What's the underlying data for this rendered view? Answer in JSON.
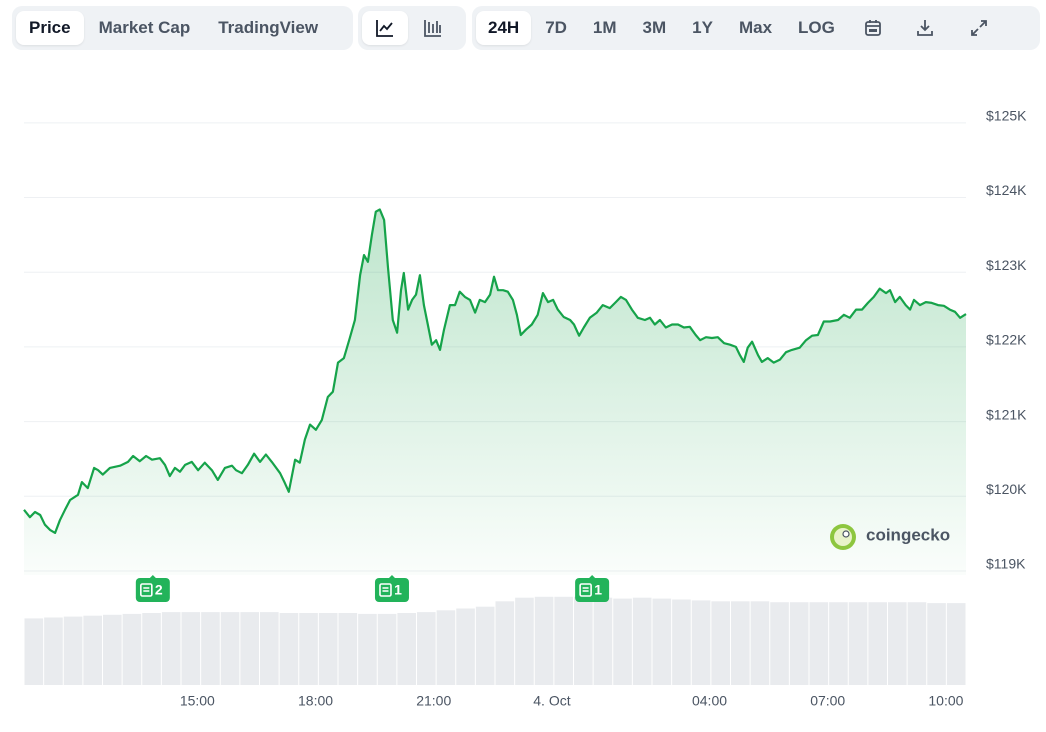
{
  "toolbar": {
    "tabs": [
      "Price",
      "Market Cap",
      "TradingView"
    ],
    "selected_tab": 0,
    "ranges": [
      "24H",
      "7D",
      "1M",
      "3M",
      "1Y",
      "Max",
      "LOG"
    ],
    "selected_range": 0
  },
  "watermark": "coingecko",
  "chart_data": {
    "type": "line",
    "x": [
      -13.4,
      -13.25,
      -13.12,
      -12.99,
      -12.87,
      -12.74,
      -12.61,
      -12.49,
      -12.36,
      -12.23,
      -12.03,
      -11.93,
      -11.78,
      -11.62,
      -11.52,
      -11.4,
      -11.22,
      -10.96,
      -10.76,
      -10.63,
      -10.46,
      -10.3,
      -10.15,
      -9.95,
      -9.82,
      -9.7,
      -9.57,
      -9.44,
      -9.31,
      -9.14,
      -8.98,
      -8.81,
      -8.63,
      -8.48,
      -8.3,
      -8.12,
      -8.02,
      -7.87,
      -7.72,
      -7.56,
      -7.41,
      -7.26,
      -7.11,
      -6.9,
      -6.78,
      -6.68,
      -6.52,
      -6.4,
      -6.27,
      -6.14,
      -5.99,
      -5.84,
      -5.69,
      -5.56,
      -5.43,
      -5.28,
      -5.13,
      -5,
      -4.87,
      -4.77,
      -4.67,
      -4.57,
      -4.47,
      -4.37,
      -4.26,
      -4.16,
      -4.04,
      -3.93,
      -3.83,
      -3.76,
      -3.65,
      -3.55,
      -3.45,
      -3.35,
      -3.25,
      -3.15,
      -3.05,
      -2.94,
      -2.84,
      -2.74,
      -2.59,
      -2.46,
      -2.34,
      -2.21,
      -2.08,
      -1.95,
      -1.83,
      -1.7,
      -1.57,
      -1.47,
      -1.37,
      -1.24,
      -1.12,
      -0.99,
      -0.89,
      -0.79,
      -0.66,
      -0.51,
      -0.36,
      -0.23,
      -0.1,
      0.03,
      0.15,
      0.3,
      0.46,
      0.56,
      0.69,
      0.81,
      0.96,
      1.14,
      1.29,
      1.47,
      1.62,
      1.75,
      1.88,
      2.03,
      2.18,
      2.36,
      2.49,
      2.61,
      2.74,
      2.89,
      3.05,
      3.2,
      3.35,
      3.5,
      3.65,
      3.76,
      3.91,
      4.06,
      4.21,
      4.37,
      4.52,
      4.67,
      4.77,
      4.87,
      4.97,
      5.08,
      5.23,
      5.33,
      5.48,
      5.63,
      5.79,
      5.94,
      6.09,
      6.29,
      6.45,
      6.6,
      6.75,
      6.9,
      7.06,
      7.26,
      7.41,
      7.56,
      7.72,
      7.87,
      8.02,
      8.17,
      8.32,
      8.48,
      8.58,
      8.71,
      8.83,
      8.98,
      9.09,
      9.19,
      9.34,
      9.49,
      9.64,
      9.8,
      9.95,
      10.1,
      10.23,
      10.36,
      10.51
    ],
    "series": [
      {
        "color": "#16a34a",
        "values": [
          119820,
          119720,
          119790,
          119750,
          119620,
          119550,
          119510,
          119680,
          119820,
          119950,
          120020,
          120190,
          120110,
          120380,
          120350,
          120290,
          120380,
          120410,
          120460,
          120540,
          120470,
          120540,
          120490,
          120510,
          120420,
          120270,
          120380,
          120330,
          120420,
          120460,
          120350,
          120450,
          120350,
          120220,
          120380,
          120410,
          120350,
          120310,
          120420,
          120570,
          120460,
          120560,
          120460,
          120310,
          120180,
          120060,
          120490,
          120450,
          120760,
          120960,
          120890,
          121020,
          121330,
          121400,
          121790,
          121850,
          122120,
          122360,
          122960,
          123230,
          123140,
          123500,
          123810,
          123840,
          123700,
          123060,
          122360,
          122190,
          122760,
          122990,
          122500,
          122630,
          122700,
          122960,
          122560,
          122300,
          122030,
          122090,
          121960,
          122230,
          122560,
          122560,
          122740,
          122670,
          122630,
          122460,
          122630,
          122600,
          122700,
          122940,
          122760,
          122760,
          122740,
          122630,
          122430,
          122160,
          122230,
          122300,
          122430,
          122720,
          122600,
          122630,
          122500,
          122400,
          122360,
          122300,
          122150,
          122260,
          122390,
          122460,
          122560,
          122520,
          122600,
          122670,
          122630,
          122500,
          122390,
          122360,
          122390,
          122300,
          122360,
          122260,
          122300,
          122300,
          122260,
          122270,
          122160,
          122090,
          122130,
          122120,
          122130,
          122050,
          122030,
          122000,
          121890,
          121800,
          121990,
          122070,
          121890,
          121800,
          121850,
          121790,
          121830,
          121930,
          121960,
          121990,
          122090,
          122150,
          122160,
          122340,
          122340,
          122360,
          122430,
          122390,
          122500,
          122500,
          122590,
          122670,
          122780,
          122720,
          122760,
          122600,
          122670,
          122560,
          122500,
          122630,
          122560,
          122600,
          122590,
          122560,
          122550,
          122500,
          122470,
          122390,
          122440
        ]
      }
    ],
    "xlim": [
      -13.4,
      10.51
    ],
    "xticks": [
      {
        "value": -9,
        "label": "15:00"
      },
      {
        "value": -6,
        "label": "18:00"
      },
      {
        "value": -3,
        "label": "21:00"
      },
      {
        "value": 0,
        "label": "4. Oct"
      },
      {
        "value": 4,
        "label": "04:00"
      },
      {
        "value": 7,
        "label": "07:00"
      },
      {
        "value": 10,
        "label": "10:00"
      }
    ],
    "ylim": [
      119000,
      125500
    ],
    "yticks": [
      {
        "value": 119000,
        "label": "$119K"
      },
      {
        "value": 120000,
        "label": "$120K"
      },
      {
        "value": 121000,
        "label": "$121K"
      },
      {
        "value": 122000,
        "label": "$122K"
      },
      {
        "value": 123000,
        "label": "$123K"
      },
      {
        "value": 124000,
        "label": "$124K"
      },
      {
        "value": 125000,
        "label": "$125K"
      }
    ],
    "grid": true,
    "volume": {
      "color": "#e9ebee",
      "ylim": [
        0,
        100
      ],
      "values": [
        74,
        75,
        76,
        77,
        78,
        79,
        80,
        81,
        81,
        81,
        81,
        81,
        81,
        80,
        80,
        80,
        80,
        79,
        79,
        80,
        81,
        83,
        85,
        87,
        93,
        97,
        98,
        98,
        98,
        97,
        96,
        97,
        96,
        95,
        94,
        93,
        93,
        93,
        92,
        92,
        92,
        92,
        92,
        92,
        92,
        92,
        91,
        91
      ]
    },
    "news_markers": [
      {
        "x": -10.13,
        "count": 2
      },
      {
        "x": -4.06,
        "count": 1
      },
      {
        "x": 1.02,
        "count": 1
      }
    ]
  }
}
